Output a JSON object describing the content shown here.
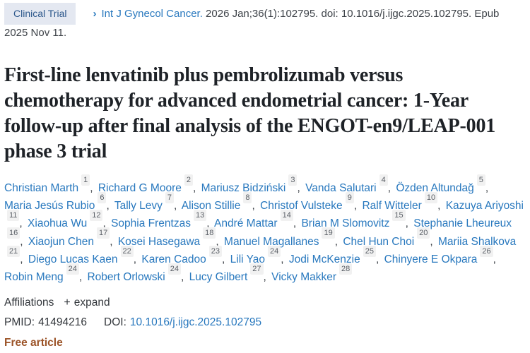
{
  "header": {
    "publication_type": "Clinical Trial",
    "chevron_glyph": "›",
    "journal_link": "Int J Gynecol Cancer.",
    "citation_text": "2026 Jan;36(1):102795. doi: 10.1016/j.ijgc.2025.102795.",
    "epub_text": "Epub 2025 Nov 11."
  },
  "title": "First-line lenvatinib plus pembrolizumab versus chemotherapy for advanced endometrial cancer: 1-Year follow-up after final analysis of the ENGOT-en9/LEAP-001 phase 3 trial",
  "authors": [
    {
      "name": "Christian Marth",
      "affiliation": "1"
    },
    {
      "name": "Richard G Moore",
      "affiliation": "2"
    },
    {
      "name": "Mariusz Bidziński",
      "affiliation": "3"
    },
    {
      "name": "Vanda Salutari",
      "affiliation": "4"
    },
    {
      "name": "Özden Altundağ",
      "affiliation": "5"
    },
    {
      "name": "Maria Jesús Rubio",
      "affiliation": "6"
    },
    {
      "name": "Tally Levy",
      "affiliation": "7"
    },
    {
      "name": "Alison Stillie",
      "affiliation": "8"
    },
    {
      "name": "Christof Vulsteke",
      "affiliation": "9"
    },
    {
      "name": "Ralf Witteler",
      "affiliation": "10"
    },
    {
      "name": "Kazuya Ariyoshi",
      "affiliation": "11"
    },
    {
      "name": "Xiaohua Wu",
      "affiliation": "12"
    },
    {
      "name": "Sophia Frentzas",
      "affiliation": "13"
    },
    {
      "name": "André Mattar",
      "affiliation": "14"
    },
    {
      "name": "Brian M Slomovitz",
      "affiliation": "15"
    },
    {
      "name": "Stephanie Lheureux",
      "affiliation": "16"
    },
    {
      "name": "Xiaojun Chen",
      "affiliation": "17"
    },
    {
      "name": "Kosei Hasegawa",
      "affiliation": "18"
    },
    {
      "name": "Manuel Magallanes",
      "affiliation": "19"
    },
    {
      "name": "Chel Hun Choi",
      "affiliation": "20"
    },
    {
      "name": "Mariia Shalkova",
      "affiliation": "21"
    },
    {
      "name": "Diego Lucas Kaen",
      "affiliation": "22"
    },
    {
      "name": "Karen Cadoo",
      "affiliation": "23"
    },
    {
      "name": "Lili Yao",
      "affiliation": "24"
    },
    {
      "name": "Jodi McKenzie",
      "affiliation": "25"
    },
    {
      "name": "Chinyere E Okpara",
      "affiliation": "26"
    },
    {
      "name": "Robin Meng",
      "affiliation": "24"
    },
    {
      "name": "Robert Orlowski",
      "affiliation": "24"
    },
    {
      "name": "Lucy Gilbert",
      "affiliation": "27"
    },
    {
      "name": "Vicky Makker",
      "affiliation": "28"
    }
  ],
  "affiliations": {
    "label": "Affiliations",
    "expand_icon": "+",
    "expand_label": "expand"
  },
  "identifiers": {
    "pmid_label": "PMID:",
    "pmid_value": "41494216",
    "doi_label": "DOI:",
    "doi_link": "10.1016/j.ijgc.2025.102795"
  },
  "free_article_label": "Free article",
  "colors": {
    "link_blue": "#2878be",
    "badge_background": "#e4e8f1",
    "badge_text": "#2c578b",
    "title_text": "#1e2227",
    "body_text": "#3d4248",
    "superscript_background": "#f1f1f1",
    "free_article_orange": "#9b5327"
  }
}
